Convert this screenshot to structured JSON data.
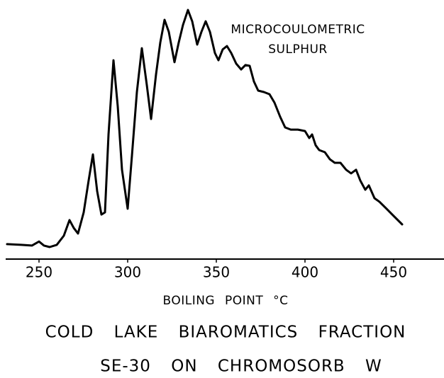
{
  "chart_data": {
    "type": "line",
    "title": "COLD LAKE BIAROMATICS FRACTION",
    "subtitle": "SE-30 ON CHROMOSORB W",
    "x_label": "BOILING POINT °C",
    "annotation": [
      "MICROCOULOMETRIC",
      "SULPHUR"
    ],
    "color": "#000000",
    "xlim": [
      232,
      478
    ],
    "ylim": [
      0,
      100
    ],
    "xticks": [
      250,
      300,
      350,
      400,
      450
    ],
    "x": [
      232.0,
      240.0,
      246.0,
      250.0,
      252.8,
      256.0,
      260.0,
      264.0,
      267.2,
      269.6,
      272.0,
      275.2,
      278.0,
      280.4,
      282.8,
      285.2,
      287.2,
      289.2,
      292.0,
      294.4,
      296.8,
      300.0,
      302.4,
      305.2,
      308.0,
      310.8,
      313.2,
      316.0,
      318.4,
      320.8,
      323.2,
      326.4,
      328.8,
      331.2,
      334.0,
      336.4,
      339.2,
      341.6,
      344.0,
      346.4,
      349.2,
      351.2,
      353.6,
      356.0,
      358.4,
      361.2,
      364.0,
      366.4,
      368.8,
      371.2,
      373.6,
      376.8,
      380.0,
      382.8,
      386.0,
      388.8,
      392.0,
      396.0,
      400.0,
      402.4,
      404.0,
      406.0,
      408.0,
      411.2,
      414.0,
      416.8,
      420.0,
      423.2,
      426.0,
      428.8,
      431.2,
      434.0,
      436.0,
      439.2,
      442.0,
      446.0,
      450.0,
      454.8
    ],
    "values": [
      1.5,
      1.2,
      0.9,
      2.6,
      0.9,
      0.3,
      1.2,
      5.0,
      11.5,
      8.2,
      5.9,
      14.7,
      28.0,
      38.8,
      23.5,
      13.8,
      14.7,
      47.1,
      77.9,
      58.8,
      32.4,
      16.2,
      38.2,
      64.7,
      82.9,
      67.6,
      53.5,
      72.1,
      85.3,
      94.7,
      89.7,
      77.1,
      85.3,
      92.6,
      98.8,
      94.1,
      84.4,
      89.7,
      94.1,
      89.7,
      80.9,
      77.9,
      82.4,
      83.8,
      80.9,
      76.5,
      74.1,
      75.9,
      75.6,
      69.1,
      65.3,
      64.7,
      63.8,
      60.3,
      54.4,
      50.0,
      49.1,
      49.1,
      48.5,
      45.6,
      47.1,
      42.6,
      40.6,
      39.7,
      36.8,
      35.3,
      35.3,
      32.4,
      30.9,
      32.4,
      27.9,
      24.1,
      25.9,
      20.6,
      19.1,
      16.2,
      13.2,
      9.7
    ]
  }
}
